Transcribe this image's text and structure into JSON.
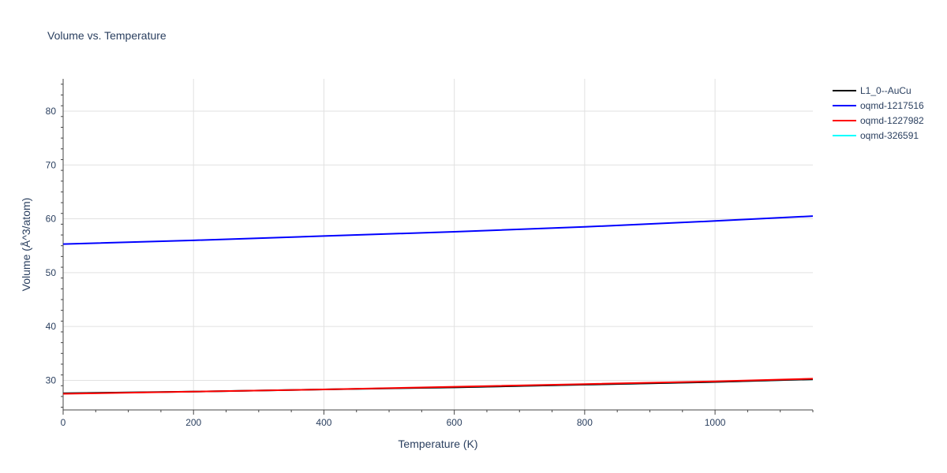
{
  "chart_data": {
    "type": "line",
    "title": "Volume vs. Temperature",
    "xlabel": "Temperature (K)",
    "ylabel": "Volume (Å^3/atom)",
    "xlim": [
      0,
      1150
    ],
    "ylim": [
      24.5,
      86
    ],
    "xticks": [
      0,
      200,
      400,
      600,
      800,
      1000
    ],
    "yticks": [
      30,
      40,
      50,
      60,
      70,
      80
    ],
    "grid": true,
    "legend_position": "top-right",
    "series": [
      {
        "name": "L1_0--AuCu",
        "color": "#000000",
        "x": [
          0,
          200,
          400,
          600,
          800,
          1000,
          1150
        ],
        "y": [
          27.6,
          27.9,
          28.3,
          28.7,
          29.2,
          29.7,
          30.2
        ]
      },
      {
        "name": "oqmd-1217516",
        "color": "#0000ff",
        "x": [
          0,
          200,
          400,
          600,
          800,
          1000,
          1150
        ],
        "y": [
          55.3,
          56.0,
          56.8,
          57.6,
          58.5,
          59.6,
          60.5
        ]
      },
      {
        "name": "oqmd-1227982",
        "color": "#ff0000",
        "x": [
          0,
          200,
          400,
          600,
          800,
          1000,
          1150
        ],
        "y": [
          27.5,
          27.9,
          28.3,
          28.8,
          29.3,
          29.8,
          30.3
        ]
      },
      {
        "name": "oqmd-326591",
        "color": "#00ffff",
        "x": [
          0,
          200,
          400,
          600,
          800,
          1000,
          1150
        ],
        "y": [
          27.6,
          27.9,
          28.3,
          28.7,
          29.2,
          29.7,
          30.2
        ]
      }
    ]
  }
}
